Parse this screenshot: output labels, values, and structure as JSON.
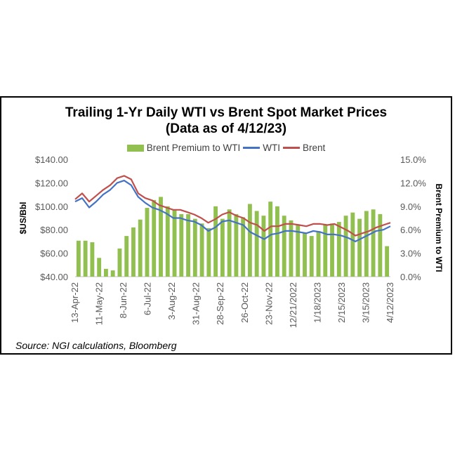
{
  "chart_data": {
    "type": "bar+line",
    "title": "Trailing 1-Yr Daily WTI vs Brent Spot Market Prices",
    "subtitle": "(Data as of 4/12/23)",
    "ylabel": "$US/Bbl",
    "y2label": "Brent Premium to WTI",
    "ylim": [
      40,
      140
    ],
    "y2lim": [
      0,
      15
    ],
    "yticks": [
      "$40.00",
      "$60.00",
      "$80.00",
      "$100.00",
      "$120.00",
      "$140.00"
    ],
    "y2ticks": [
      "0.0%",
      "3.0%",
      "6.0%",
      "9.0%",
      "12.0%",
      "15.0%"
    ],
    "xticks": [
      "13-Apr-22",
      "11-May-22",
      "8-Jun-22",
      "6-Jul-22",
      "3-Aug-22",
      "31-Aug-22",
      "28-Sep-22",
      "26-Oct-22",
      "23-Nov-22",
      "12/21/2022",
      "1/18/2023",
      "2/15/2023",
      "3/15/2023",
      "4/12/2023"
    ],
    "legend": [
      "Brent Premium to WTI",
      "WTI",
      "Brent"
    ],
    "legend_position": "top",
    "colors": {
      "bar": "#92c050",
      "wti": "#4472c4",
      "brent": "#c0504d"
    },
    "series": [
      {
        "name": "WTI",
        "values": [
          104,
          107,
          99,
          104,
          110,
          114,
          120,
          122,
          118,
          108,
          103,
          99,
          97,
          94,
          90,
          90,
          88,
          87,
          84,
          79,
          82,
          87,
          88,
          86,
          84,
          78,
          75,
          72,
          76,
          77,
          79,
          79,
          78,
          77,
          79,
          78,
          76,
          76,
          75,
          73,
          70,
          73,
          76,
          79,
          80,
          83
        ]
      },
      {
        "name": "Brent",
        "values": [
          106,
          111,
          104,
          109,
          114,
          118,
          124,
          126,
          123,
          111,
          107,
          105,
          101,
          99,
          97,
          97,
          95,
          93,
          90,
          86,
          89,
          93,
          95,
          92,
          90,
          86,
          84,
          79,
          83,
          83,
          85,
          85,
          84,
          83,
          85,
          85,
          84,
          85,
          82,
          79,
          75,
          77,
          79,
          82,
          84,
          86
        ]
      },
      {
        "name": "Brent Premium to WTI",
        "values": [
          4.6,
          4.6,
          4.4,
          2.4,
          1.0,
          0.8,
          3.6,
          5.2,
          6.3,
          7.3,
          8.8,
          9.8,
          10.2,
          9.0,
          8.6,
          8.0,
          8.0,
          7.4,
          6.8,
          6.2,
          9.0,
          7.4,
          8.6,
          8.0,
          7.6,
          9.3,
          8.4,
          7.8,
          9.6,
          9.0,
          7.8,
          7.2,
          6.6,
          5.6,
          5.2,
          5.8,
          6.6,
          6.8,
          7.0,
          7.8,
          8.2,
          7.4,
          8.4,
          8.6,
          8.0,
          3.9
        ]
      }
    ]
  },
  "source": "Source: NGI calculations, Bloomberg"
}
